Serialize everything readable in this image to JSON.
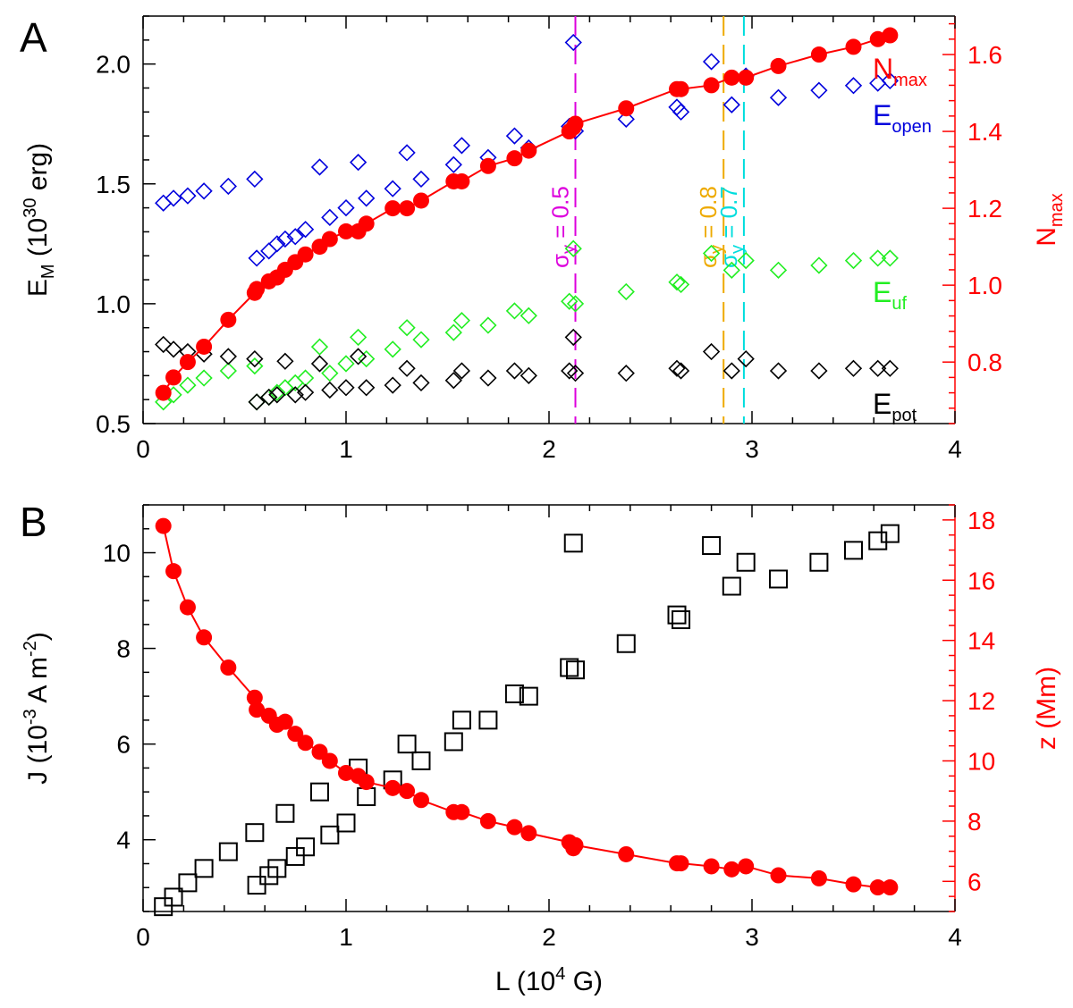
{
  "chart_data": [
    {
      "panel": "A",
      "type": "scatter",
      "xlim": [
        0,
        4
      ],
      "xticks": [
        "0",
        "1",
        "2",
        "3",
        "4"
      ],
      "ylim": [
        0.5,
        2.2
      ],
      "yticks": [
        "0.5",
        "1.0",
        "1.5",
        "2.0"
      ],
      "ylabel_parts": [
        "E",
        "M",
        " (10",
        "30",
        " erg)"
      ],
      "y2lim": [
        0.64,
        1.7
      ],
      "y2ticks": [
        "0.8",
        "1.0",
        "1.2",
        "1.4",
        "1.6"
      ],
      "y2label_parts": [
        "N",
        "max"
      ],
      "colors": {
        "E_open": "#0000dd",
        "E_uf": "#22ee22",
        "E_pot": "#000000",
        "N_max": "#ff0000",
        "sigma05": "#dd00dd",
        "sigma08": "#eeaa00",
        "sigma07": "#00dddd"
      },
      "series": [
        {
          "key": "E_open",
          "label_main": "E",
          "label_sub": "open",
          "marker": "diamond",
          "axis": "left",
          "x": [
            0.1,
            0.15,
            0.22,
            0.3,
            0.42,
            0.55,
            0.56,
            0.62,
            0.66,
            0.7,
            0.75,
            0.8,
            0.87,
            0.92,
            1.0,
            1.06,
            1.1,
            1.23,
            1.3,
            1.37,
            1.53,
            1.57,
            1.7,
            1.83,
            1.9,
            2.1,
            2.12,
            2.13,
            2.38,
            2.63,
            2.65,
            2.8,
            2.9,
            2.97,
            3.13,
            3.33,
            3.5,
            3.62,
            3.68
          ],
          "y": [
            1.42,
            1.44,
            1.45,
            1.47,
            1.49,
            1.52,
            1.19,
            1.22,
            1.25,
            1.27,
            1.28,
            1.31,
            1.57,
            1.36,
            1.4,
            1.59,
            1.44,
            1.48,
            1.63,
            1.52,
            1.58,
            1.66,
            1.61,
            1.7,
            1.65,
            1.74,
            2.09,
            1.72,
            1.77,
            1.82,
            1.8,
            2.01,
            1.83,
            1.95,
            1.86,
            1.89,
            1.91,
            1.92,
            1.93
          ]
        },
        {
          "key": "E_uf",
          "label_main": "E",
          "label_sub": "uf",
          "marker": "diamond",
          "axis": "left",
          "x": [
            0.1,
            0.15,
            0.22,
            0.3,
            0.42,
            0.55,
            0.56,
            0.62,
            0.66,
            0.7,
            0.75,
            0.8,
            0.87,
            0.92,
            1.0,
            1.06,
            1.1,
            1.23,
            1.3,
            1.37,
            1.53,
            1.57,
            1.7,
            1.83,
            1.9,
            2.1,
            2.12,
            2.13,
            2.38,
            2.63,
            2.65,
            2.8,
            2.9,
            2.97,
            3.13,
            3.33,
            3.5,
            3.62,
            3.68
          ],
          "y": [
            0.59,
            0.62,
            0.66,
            0.69,
            0.72,
            0.74,
            0.59,
            0.61,
            0.63,
            0.65,
            0.67,
            0.69,
            0.82,
            0.71,
            0.75,
            0.86,
            0.77,
            0.81,
            0.9,
            0.85,
            0.88,
            0.93,
            0.91,
            0.97,
            0.95,
            1.01,
            1.23,
            1.0,
            1.05,
            1.09,
            1.08,
            1.21,
            1.14,
            1.18,
            1.14,
            1.16,
            1.18,
            1.19,
            1.19
          ]
        },
        {
          "key": "E_pot",
          "label_main": "E",
          "label_sub": "pot",
          "marker": "diamond",
          "axis": "left",
          "x": [
            0.1,
            0.15,
            0.22,
            0.3,
            0.42,
            0.55,
            0.56,
            0.62,
            0.66,
            0.7,
            0.75,
            0.8,
            0.87,
            0.92,
            1.0,
            1.06,
            1.1,
            1.23,
            1.3,
            1.37,
            1.53,
            1.57,
            1.7,
            1.83,
            1.9,
            2.1,
            2.12,
            2.13,
            2.38,
            2.63,
            2.65,
            2.8,
            2.9,
            2.97,
            3.13,
            3.33,
            3.5,
            3.62,
            3.68
          ],
          "y": [
            0.83,
            0.81,
            0.8,
            0.79,
            0.78,
            0.77,
            0.59,
            0.61,
            0.62,
            0.76,
            0.62,
            0.63,
            0.75,
            0.64,
            0.65,
            0.78,
            0.65,
            0.66,
            0.73,
            0.67,
            0.68,
            0.72,
            0.69,
            0.72,
            0.7,
            0.72,
            0.86,
            0.71,
            0.71,
            0.73,
            0.72,
            0.8,
            0.72,
            0.77,
            0.72,
            0.72,
            0.73,
            0.73,
            0.73
          ]
        },
        {
          "key": "N_max",
          "label_main": "N",
          "label_sub": "max",
          "marker": "circle",
          "axis": "right",
          "line": true,
          "x": [
            0.1,
            0.15,
            0.22,
            0.3,
            0.42,
            0.55,
            0.56,
            0.62,
            0.66,
            0.7,
            0.75,
            0.8,
            0.87,
            0.92,
            1.0,
            1.06,
            1.1,
            1.23,
            1.3,
            1.37,
            1.53,
            1.57,
            1.7,
            1.83,
            1.9,
            2.1,
            2.12,
            2.13,
            2.38,
            2.63,
            2.65,
            2.8,
            2.9,
            2.97,
            3.13,
            3.33,
            3.5,
            3.62,
            3.68
          ],
          "y": [
            0.72,
            0.76,
            0.8,
            0.84,
            0.91,
            0.98,
            0.99,
            1.01,
            1.02,
            1.04,
            1.06,
            1.08,
            1.1,
            1.12,
            1.14,
            1.14,
            1.16,
            1.2,
            1.2,
            1.22,
            1.27,
            1.27,
            1.31,
            1.33,
            1.35,
            1.4,
            1.41,
            1.42,
            1.46,
            1.51,
            1.51,
            1.52,
            1.54,
            1.54,
            1.57,
            1.6,
            1.62,
            1.64,
            1.65
          ]
        }
      ],
      "vlines": [
        {
          "key": "sigma05",
          "x": 2.13,
          "label_main": "σ",
          "label_sub": "y",
          "label_rest": " = 0.5"
        },
        {
          "key": "sigma08",
          "x": 2.86,
          "label_main": "σ",
          "label_sub": "y",
          "label_rest": " = 0.8"
        },
        {
          "key": "sigma07",
          "x": 2.96,
          "label_main": "σ",
          "label_sub": "y",
          "label_rest": " = 0.7"
        }
      ]
    },
    {
      "panel": "B",
      "type": "scatter",
      "xlim": [
        0,
        4
      ],
      "xticks": [
        "0",
        "1",
        "2",
        "3",
        "4"
      ],
      "xlabel_parts": [
        "L (10",
        "4",
        " G)"
      ],
      "ylim": [
        2.5,
        11
      ],
      "yticks": [
        "4",
        "6",
        "8",
        "10"
      ],
      "ylabel_parts": [
        "J (10",
        "-3",
        " A m",
        "-2",
        ")"
      ],
      "y2lim": [
        5,
        18.5
      ],
      "y2ticks": [
        "6",
        "8",
        "10",
        "12",
        "14",
        "16",
        "18"
      ],
      "y2label": "z (Mm)",
      "colors": {
        "J": "#000000",
        "z": "#ff0000"
      },
      "series": [
        {
          "key": "J",
          "marker": "square",
          "axis": "left",
          "x": [
            0.1,
            0.15,
            0.22,
            0.3,
            0.42,
            0.55,
            0.56,
            0.62,
            0.66,
            0.7,
            0.75,
            0.8,
            0.87,
            0.92,
            1.0,
            1.06,
            1.1,
            1.23,
            1.3,
            1.37,
            1.53,
            1.57,
            1.7,
            1.83,
            1.9,
            2.1,
            2.12,
            2.13,
            2.38,
            2.63,
            2.65,
            2.8,
            2.9,
            2.97,
            3.13,
            3.33,
            3.5,
            3.62,
            3.68
          ],
          "y": [
            2.6,
            2.8,
            3.1,
            3.4,
            3.75,
            4.15,
            3.05,
            3.25,
            3.4,
            4.55,
            3.65,
            3.85,
            5.0,
            4.1,
            4.35,
            5.5,
            4.9,
            5.25,
            6.0,
            5.65,
            6.05,
            6.5,
            6.5,
            7.05,
            7.0,
            7.6,
            10.2,
            7.55,
            8.1,
            8.7,
            8.6,
            10.15,
            9.3,
            9.8,
            9.45,
            9.8,
            10.05,
            10.25,
            10.4
          ]
        },
        {
          "key": "z",
          "marker": "circle",
          "axis": "right",
          "line": true,
          "x": [
            0.1,
            0.15,
            0.22,
            0.3,
            0.42,
            0.55,
            0.56,
            0.62,
            0.66,
            0.7,
            0.75,
            0.8,
            0.87,
            0.92,
            1.0,
            1.06,
            1.1,
            1.23,
            1.3,
            1.37,
            1.53,
            1.57,
            1.7,
            1.83,
            1.9,
            2.1,
            2.12,
            2.13,
            2.38,
            2.63,
            2.65,
            2.8,
            2.9,
            2.97,
            3.13,
            3.33,
            3.5,
            3.62,
            3.68
          ],
          "y": [
            17.8,
            16.3,
            15.1,
            14.1,
            13.1,
            12.1,
            11.7,
            11.5,
            11.2,
            11.3,
            10.9,
            10.6,
            10.3,
            10.0,
            9.6,
            9.5,
            9.3,
            9.1,
            9.0,
            8.7,
            8.3,
            8.3,
            8.0,
            7.8,
            7.6,
            7.3,
            7.1,
            7.2,
            6.9,
            6.6,
            6.6,
            6.5,
            6.4,
            6.5,
            6.2,
            6.1,
            5.9,
            5.8,
            5.8
          ]
        }
      ]
    }
  ]
}
